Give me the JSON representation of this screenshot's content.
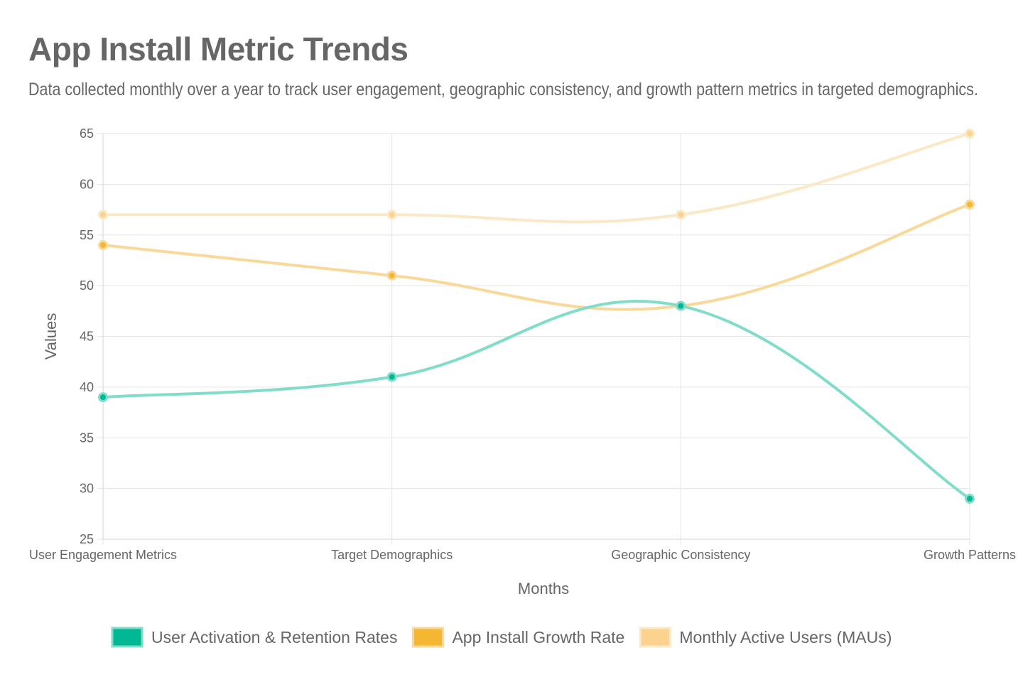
{
  "chart_data": {
    "type": "line",
    "title": "App Install Metric Trends",
    "subtitle": "Data collected monthly over a year to track user engagement, geographic consistency, and growth pattern metrics in targeted demographics.",
    "xlabel": "Months",
    "ylabel": "Values",
    "categories": [
      "User Engagement Metrics",
      "Target Demographics",
      "Geographic Consistency",
      "Growth Patterns"
    ],
    "ylim": [
      25,
      65
    ],
    "yticks": [
      25,
      30,
      35,
      40,
      45,
      50,
      55,
      60,
      65
    ],
    "yticks_labels": [
      "25",
      "30",
      "35",
      "40",
      "45",
      "50",
      "55",
      "60",
      "65"
    ],
    "grid": true,
    "legend_position": "bottom",
    "series": [
      {
        "name": "User Activation & Retention Rates",
        "values": [
          39,
          41,
          48,
          29
        ],
        "color": "#00b894",
        "line_color": "#81dcc9"
      },
      {
        "name": "App Install Growth Rate",
        "values": [
          54,
          51,
          48,
          58
        ],
        "color": "#f5b731",
        "line_color": "#f8d99a"
      },
      {
        "name": "Monthly Active Users (MAUs)",
        "values": [
          57,
          57,
          57,
          65
        ],
        "color": "#fbd38f",
        "line_color": "#fbe8c6"
      }
    ]
  }
}
